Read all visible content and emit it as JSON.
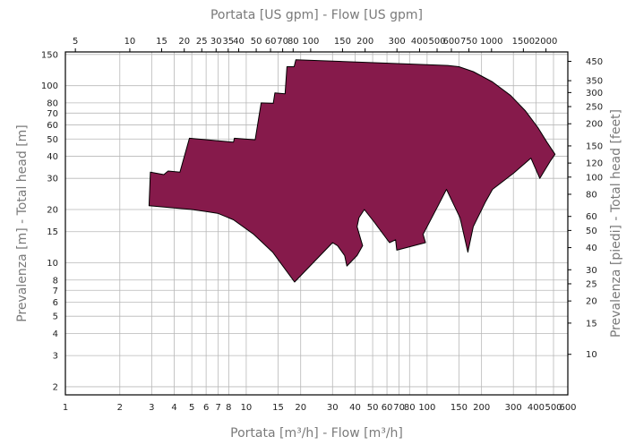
{
  "chart_data": {
    "type": "area",
    "title": "",
    "xlabel_bottom": "Portata [m³/h] - Flow [m³/h]",
    "xlabel_top": "Portata [US gpm] - Flow [US gpm]",
    "ylabel_left": "Prevalenza [m] - Total head [m]",
    "ylabel_right": "Prevalenza [piedi] - Total head [feet]",
    "x_scale": "log",
    "y_scale": "log",
    "xlim": [
      1,
      600
    ],
    "ylim": [
      1.8,
      155
    ],
    "grid": true,
    "fill_color": "#861a4b",
    "x_ticks_bottom": [
      1,
      2,
      3,
      4,
      5,
      6,
      7,
      8,
      10,
      15,
      20,
      30,
      40,
      50,
      60,
      70,
      80,
      100,
      150,
      200,
      300,
      400,
      500,
      600
    ],
    "x_tick_labels_bottom": [
      "1",
      "2",
      "3",
      "4",
      "5",
      "6",
      "7",
      "8",
      "10",
      "15",
      "20",
      "30",
      "40",
      "50",
      "60",
      "70",
      "80",
      "100",
      "150",
      "200",
      "300",
      "400",
      "500",
      "600"
    ],
    "x_ticks_top_gpm": [
      5,
      10,
      15,
      20,
      25,
      30,
      35,
      40,
      50,
      60,
      70,
      80,
      100,
      150,
      200,
      300,
      400,
      500,
      600,
      750,
      1000,
      1500,
      2000
    ],
    "x_tick_labels_top": [
      "5",
      "10",
      "15",
      "20",
      "25",
      "30",
      "35",
      "40",
      "50",
      "60",
      "70",
      "80",
      "100",
      "150",
      "200",
      "300",
      "400",
      "500",
      "600",
      "750",
      "1000",
      "1500",
      "2000"
    ],
    "y_ticks_left": [
      2,
      3,
      4,
      5,
      6,
      7,
      8,
      10,
      15,
      20,
      30,
      40,
      50,
      60,
      70,
      80,
      100,
      150
    ],
    "y_tick_labels_left": [
      "2",
      "3",
      "4",
      "5",
      "6",
      "7",
      "8",
      "10",
      "15",
      "20",
      "30",
      "40",
      "50",
      "60",
      "70",
      "80",
      "100",
      "150"
    ],
    "y_ticks_right_feet": [
      10,
      15,
      20,
      25,
      30,
      40,
      50,
      60,
      80,
      100,
      120,
      150,
      200,
      250,
      300,
      350,
      450
    ],
    "y_tick_labels_right": [
      "10",
      "15",
      "20",
      "25",
      "30",
      "40",
      "50",
      "60",
      "80",
      "100",
      "120",
      "150",
      "200",
      "250",
      "300",
      "350",
      "450"
    ],
    "envelope": [
      [
        2.9,
        21
      ],
      [
        2.95,
        32.5
      ],
      [
        3.5,
        31.5
      ],
      [
        3.7,
        33
      ],
      [
        4.3,
        32.5
      ],
      [
        4.85,
        50.5
      ],
      [
        8.5,
        48
      ],
      [
        8.6,
        50.5
      ],
      [
        11.2,
        49.5
      ],
      [
        12.1,
        80
      ],
      [
        14.1,
        79.5
      ],
      [
        14.4,
        91
      ],
      [
        16.4,
        90
      ],
      [
        16.8,
        128
      ],
      [
        18.4,
        128
      ],
      [
        18.8,
        140
      ],
      [
        130,
        130
      ],
      [
        150,
        128
      ],
      [
        180,
        120
      ],
      [
        230,
        105
      ],
      [
        290,
        88
      ],
      [
        350,
        72
      ],
      [
        410,
        58
      ],
      [
        460,
        48
      ],
      [
        510,
        41
      ],
      [
        480,
        37.5
      ],
      [
        420,
        30
      ],
      [
        375,
        39
      ],
      [
        300,
        32
      ],
      [
        230,
        26
      ],
      [
        210,
        22
      ],
      [
        180,
        16
      ],
      [
        168,
        11.5
      ],
      [
        152,
        18
      ],
      [
        128,
        26
      ],
      [
        115,
        21
      ],
      [
        95,
        14.5
      ],
      [
        98,
        13
      ],
      [
        68,
        11.8
      ],
      [
        67,
        13.5
      ],
      [
        62,
        13
      ],
      [
        51,
        17
      ],
      [
        45,
        20
      ],
      [
        42,
        18
      ],
      [
        41,
        16
      ],
      [
        43,
        13.5
      ],
      [
        44,
        12.5
      ],
      [
        41,
        11
      ],
      [
        36,
        9.6
      ],
      [
        35,
        11
      ],
      [
        32,
        12.5
      ],
      [
        30,
        13
      ],
      [
        18.5,
        7.8
      ],
      [
        14,
        11.5
      ],
      [
        11,
        14.5
      ],
      [
        8.5,
        17.5
      ],
      [
        7,
        19
      ],
      [
        6,
        19.5
      ],
      [
        5,
        20
      ],
      [
        2.9,
        21
      ]
    ]
  }
}
